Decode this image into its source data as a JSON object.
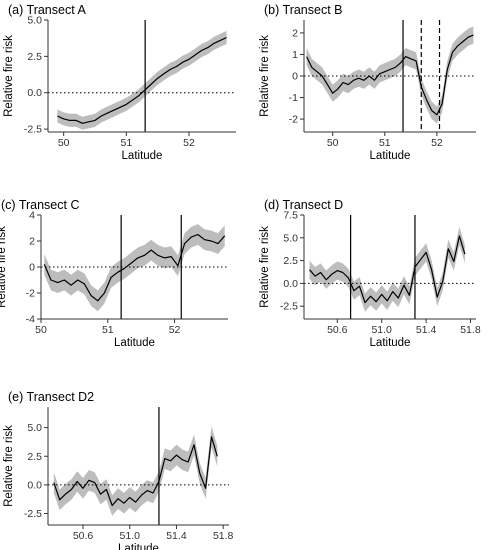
{
  "chart_data": [
    {
      "id": "A",
      "type": "line",
      "title": "(a) Transect A",
      "xlabel": "Latitude",
      "ylabel": "Relative fire risk",
      "xlim": [
        49.75,
        52.75
      ],
      "ylim": [
        -2.7,
        5.0
      ],
      "xticks": [
        50,
        51,
        52
      ],
      "xtick_labels": [
        "50",
        "51",
        "52"
      ],
      "yticks": [
        -2.5,
        0.0,
        2.5,
        5.0
      ],
      "ytick_labels": [
        "-2.5",
        "0.0",
        "2.5",
        "5.0"
      ],
      "zero_line": 0,
      "vlines": [
        {
          "x": 51.3,
          "style": "solid"
        }
      ],
      "series": [
        {
          "x": [
            49.9,
            50.0,
            50.1,
            50.2,
            50.3,
            50.4,
            50.5,
            50.6,
            50.7,
            50.8,
            50.9,
            51.0,
            51.1,
            51.2,
            51.3,
            51.4,
            51.5,
            51.6,
            51.7,
            51.8,
            51.9,
            52.0,
            52.1,
            52.2,
            52.3,
            52.4,
            52.5,
            52.6
          ],
          "y": [
            -1.6,
            -1.8,
            -1.9,
            -1.9,
            -2.1,
            -2.0,
            -1.9,
            -1.6,
            -1.4,
            -1.2,
            -1.0,
            -0.8,
            -0.5,
            -0.2,
            0.2,
            0.6,
            1.0,
            1.3,
            1.6,
            1.8,
            2.1,
            2.3,
            2.6,
            2.9,
            3.1,
            3.4,
            3.6,
            3.8
          ],
          "band": 0.45
        }
      ]
    },
    {
      "id": "B",
      "type": "line",
      "title": "(b) Transect B",
      "xlabel": "Latitude",
      "ylabel": "Relative fire risk",
      "xlim": [
        49.45,
        52.75
      ],
      "ylim": [
        -2.6,
        2.6
      ],
      "xticks": [
        50,
        51,
        52
      ],
      "xtick_labels": [
        "50",
        "51",
        "52"
      ],
      "yticks": [
        -2,
        -1,
        0,
        1,
        2
      ],
      "ytick_labels": [
        "-2",
        "-1",
        "0",
        "1",
        "2"
      ],
      "zero_line": 0,
      "vlines": [
        {
          "x": 51.35,
          "style": "solid"
        },
        {
          "x": 51.7,
          "style": "dashed"
        },
        {
          "x": 52.05,
          "style": "dashed"
        }
      ],
      "series": [
        {
          "x": [
            49.5,
            49.6,
            49.7,
            49.8,
            49.9,
            50.0,
            50.1,
            50.2,
            50.3,
            50.4,
            50.5,
            50.6,
            50.7,
            50.8,
            50.9,
            51.0,
            51.1,
            51.2,
            51.3,
            51.4,
            51.5,
            51.6,
            51.7,
            51.8,
            51.9,
            52.0,
            52.1,
            52.2,
            52.3,
            52.4,
            52.5,
            52.6,
            52.7
          ],
          "y": [
            0.9,
            0.4,
            0.2,
            0.0,
            -0.4,
            -0.8,
            -0.6,
            -0.3,
            -0.4,
            -0.2,
            -0.1,
            -0.2,
            0.0,
            -0.2,
            0.1,
            0.2,
            0.3,
            0.4,
            0.6,
            0.9,
            0.8,
            0.7,
            -0.5,
            -1.1,
            -1.6,
            -1.8,
            -1.3,
            0.3,
            1.1,
            1.4,
            1.6,
            1.8,
            1.9
          ],
          "band": 0.4
        }
      ]
    },
    {
      "id": "C",
      "type": "line",
      "title": "(c) Transect C",
      "xlabel": "Latitude",
      "ylabel": "Relative fire risk",
      "xlim": [
        50.0,
        52.8
      ],
      "ylim": [
        -4.0,
        4.0
      ],
      "xticks": [
        50,
        51,
        52
      ],
      "xtick_labels": [
        "50",
        "51",
        "52"
      ],
      "yticks": [
        -4,
        -2,
        0,
        2,
        4
      ],
      "ytick_labels": [
        "-4",
        "-2",
        "0",
        "2",
        "4"
      ],
      "zero_line": 0,
      "vlines": [
        {
          "x": 51.2,
          "style": "solid"
        },
        {
          "x": 52.1,
          "style": "solid"
        }
      ],
      "series": [
        {
          "x": [
            50.05,
            50.15,
            50.25,
            50.35,
            50.45,
            50.55,
            50.65,
            50.75,
            50.85,
            50.95,
            51.05,
            51.15,
            51.25,
            51.35,
            51.45,
            51.55,
            51.65,
            51.75,
            51.85,
            51.95,
            52.05,
            52.15,
            52.25,
            52.35,
            52.45,
            52.55,
            52.65,
            52.75
          ],
          "y": [
            0.2,
            -1.0,
            -1.2,
            -1.0,
            -1.4,
            -1.0,
            -1.3,
            -2.2,
            -2.6,
            -2.0,
            -0.8,
            -0.4,
            -0.1,
            0.3,
            0.7,
            0.9,
            1.3,
            0.9,
            0.7,
            0.8,
            0.1,
            1.8,
            2.3,
            2.5,
            2.1,
            2.0,
            1.8,
            2.4
          ],
          "band": 0.8
        }
      ]
    },
    {
      "id": "D",
      "type": "line",
      "title": "(d) Transect D",
      "xlabel": "Latitude",
      "ylabel": "Relative fire risk",
      "xlim": [
        50.3,
        51.85
      ],
      "ylim": [
        -3.9,
        7.5
      ],
      "xticks": [
        50.6,
        51.0,
        51.4,
        51.8
      ],
      "xtick_labels": [
        "50.6",
        "51.0",
        "51.4",
        "51.8"
      ],
      "yticks": [
        -2.5,
        0.0,
        2.5,
        5.0,
        7.5
      ],
      "ytick_labels": [
        "-2.5",
        "0.0",
        "2.5",
        "5.0",
        "7.5"
      ],
      "zero_line": 0,
      "vlines": [
        {
          "x": 50.72,
          "style": "solid"
        },
        {
          "x": 51.3,
          "style": "solid"
        }
      ],
      "series": [
        {
          "x": [
            50.35,
            50.4,
            50.45,
            50.5,
            50.55,
            50.6,
            50.65,
            50.7,
            50.75,
            50.8,
            50.85,
            50.9,
            50.95,
            51.0,
            51.05,
            51.1,
            51.15,
            51.2,
            51.25,
            51.3,
            51.35,
            51.4,
            51.45,
            51.5,
            51.55,
            51.6,
            51.65,
            51.7,
            51.75
          ],
          "y": [
            1.5,
            0.8,
            1.2,
            0.4,
            1.0,
            1.4,
            1.2,
            0.6,
            -0.8,
            -0.3,
            -2.1,
            -1.4,
            -2.0,
            -1.2,
            -1.9,
            -0.9,
            -1.6,
            -0.2,
            -1.3,
            1.8,
            2.6,
            3.4,
            1.5,
            -1.5,
            0.2,
            3.8,
            2.4,
            5.2,
            3.2
          ],
          "band": 1.0
        }
      ]
    },
    {
      "id": "E",
      "type": "line",
      "title": "(e) Transect D2",
      "xlabel": "Latitude",
      "ylabel": "Relative fire risk",
      "xlim": [
        50.3,
        51.85
      ],
      "ylim": [
        -3.5,
        6.8
      ],
      "xticks": [
        50.6,
        51.0,
        51.4,
        51.8
      ],
      "xtick_labels": [
        "50.6",
        "51.0",
        "51.4",
        "51.8"
      ],
      "yticks": [
        -2.5,
        0.0,
        2.5,
        5.0
      ],
      "ytick_labels": [
        "-2.5",
        "0.0",
        "2.5",
        "5.0"
      ],
      "zero_line": 0,
      "vlines": [
        {
          "x": 51.25,
          "style": "solid"
        }
      ],
      "series": [
        {
          "x": [
            50.35,
            50.4,
            50.45,
            50.5,
            50.55,
            50.6,
            50.65,
            50.7,
            50.75,
            50.8,
            50.85,
            50.9,
            50.95,
            51.0,
            51.05,
            51.1,
            51.15,
            51.2,
            51.25,
            51.3,
            51.35,
            51.4,
            51.45,
            51.5,
            51.55,
            51.6,
            51.65,
            51.7,
            51.75
          ],
          "y": [
            0.2,
            -1.3,
            -0.8,
            -0.4,
            0.3,
            -0.3,
            0.4,
            0.2,
            -0.8,
            -0.4,
            -1.8,
            -1.2,
            -1.6,
            -1.1,
            -1.5,
            -0.9,
            -0.5,
            -0.7,
            0.3,
            2.3,
            2.1,
            2.6,
            2.2,
            2.0,
            3.5,
            1.0,
            -0.3,
            4.2,
            2.5
          ],
          "band": 0.9
        }
      ]
    }
  ]
}
